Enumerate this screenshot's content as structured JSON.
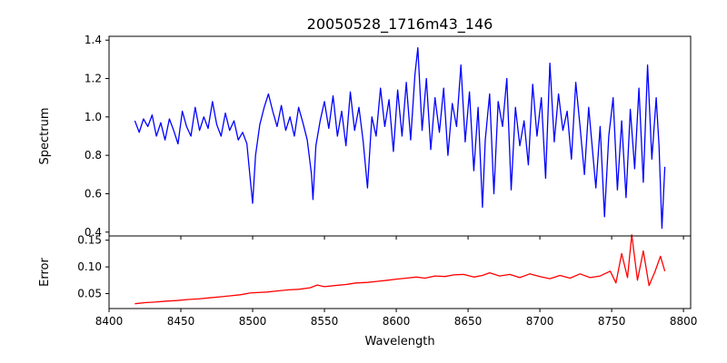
{
  "chart_data": [
    {
      "panel": "top",
      "type": "line",
      "title": "20050528_1716m43_146",
      "ylabel": "Spectrum",
      "xlabel": "",
      "xlim": [
        8400,
        8805
      ],
      "ylim": [
        0.38,
        1.42
      ],
      "yticks": [
        0.4,
        0.6,
        0.8,
        1.0,
        1.2,
        1.4
      ],
      "ytick_labels": [
        "0.4",
        "0.6",
        "0.8",
        "1.0",
        "1.2",
        "1.4"
      ],
      "series": [
        {
          "name": "Spectrum",
          "color": "#0000ff",
          "x": [
            8418,
            8421,
            8424,
            8427,
            8430,
            8433,
            8436,
            8439,
            8442,
            8445,
            8448,
            8451,
            8454,
            8457,
            8460,
            8463,
            8466,
            8469,
            8472,
            8475,
            8478,
            8481,
            8484,
            8487,
            8490,
            8493,
            8496,
            8498,
            8500,
            8502,
            8505,
            8508,
            8511,
            8514,
            8517,
            8520,
            8523,
            8526,
            8529,
            8532,
            8535,
            8538,
            8541,
            8542,
            8544,
            8547,
            8550,
            8553,
            8556,
            8559,
            8562,
            8565,
            8568,
            8571,
            8574,
            8577,
            8580,
            8583,
            8586,
            8589,
            8592,
            8595,
            8598,
            8601,
            8604,
            8607,
            8610,
            8613,
            8615,
            8618,
            8621,
            8624,
            8627,
            8630,
            8633,
            8636,
            8639,
            8642,
            8645,
            8648,
            8651,
            8654,
            8657,
            8660,
            8662,
            8665,
            8668,
            8671,
            8674,
            8677,
            8680,
            8683,
            8686,
            8689,
            8692,
            8695,
            8698,
            8701,
            8704,
            8707,
            8710,
            8713,
            8716,
            8719,
            8722,
            8725,
            8728,
            8731,
            8734,
            8737,
            8739,
            8742,
            8745,
            8748,
            8751,
            8754,
            8757,
            8760,
            8763,
            8766,
            8769,
            8772,
            8775,
            8778,
            8781,
            8783,
            8785,
            8787
          ],
          "y": [
            0.98,
            0.92,
            0.99,
            0.95,
            1.01,
            0.9,
            0.97,
            0.88,
            0.99,
            0.93,
            0.86,
            1.03,
            0.95,
            0.9,
            1.05,
            0.93,
            1.0,
            0.94,
            1.08,
            0.96,
            0.9,
            1.02,
            0.93,
            0.98,
            0.88,
            0.92,
            0.86,
            0.7,
            0.55,
            0.8,
            0.96,
            1.05,
            1.12,
            1.03,
            0.95,
            1.06,
            0.93,
            1.0,
            0.9,
            1.05,
            0.97,
            0.88,
            0.7,
            0.57,
            0.85,
            0.98,
            1.08,
            0.94,
            1.11,
            0.9,
            1.03,
            0.85,
            1.13,
            0.93,
            1.05,
            0.87,
            0.63,
            1.0,
            0.9,
            1.15,
            0.95,
            1.09,
            0.82,
            1.14,
            0.9,
            1.18,
            0.88,
            1.22,
            1.36,
            0.93,
            1.2,
            0.83,
            1.1,
            0.92,
            1.15,
            0.8,
            1.07,
            0.95,
            1.27,
            0.87,
            1.13,
            0.72,
            1.05,
            0.53,
            0.88,
            1.12,
            0.6,
            1.08,
            0.95,
            1.2,
            0.62,
            1.05,
            0.85,
            0.98,
            0.75,
            1.17,
            0.9,
            1.1,
            0.68,
            1.28,
            0.87,
            1.12,
            0.93,
            1.03,
            0.78,
            1.18,
            0.95,
            0.7,
            1.05,
            0.8,
            0.63,
            0.95,
            0.48,
            0.9,
            1.1,
            0.62,
            0.98,
            0.58,
            1.04,
            0.73,
            1.15,
            0.66,
            1.27,
            0.78,
            1.1,
            0.85,
            0.42,
            0.74
          ]
        }
      ]
    },
    {
      "panel": "bottom",
      "type": "line",
      "title": "",
      "ylabel": "Error",
      "xlabel": "Wavelength",
      "xlim": [
        8400,
        8805
      ],
      "ylim": [
        0.022,
        0.158
      ],
      "yticks": [
        0.05,
        0.1,
        0.15
      ],
      "ytick_labels": [
        "0.05",
        "0.10",
        "0.15"
      ],
      "xticks": [
        8400,
        8450,
        8500,
        8550,
        8600,
        8650,
        8700,
        8750,
        8800
      ],
      "xtick_labels": [
        "8400",
        "8450",
        "8500",
        "8550",
        "8600",
        "8650",
        "8700",
        "8750",
        "8800"
      ],
      "series": [
        {
          "name": "Error",
          "color": "#ff0000",
          "x": [
            8418,
            8425,
            8432,
            8440,
            8447,
            8455,
            8462,
            8470,
            8477,
            8485,
            8492,
            8498,
            8503,
            8510,
            8517,
            8525,
            8532,
            8540,
            8545,
            8550,
            8557,
            8565,
            8572,
            8580,
            8587,
            8594,
            8600,
            8607,
            8614,
            8620,
            8627,
            8634,
            8640,
            8647,
            8654,
            8660,
            8665,
            8672,
            8679,
            8686,
            8693,
            8700,
            8707,
            8714,
            8721,
            8728,
            8735,
            8742,
            8749,
            8753,
            8757,
            8761,
            8764,
            8768,
            8772,
            8776,
            8780,
            8784,
            8787
          ],
          "y": [
            0.031,
            0.033,
            0.034,
            0.036,
            0.037,
            0.039,
            0.04,
            0.042,
            0.044,
            0.046,
            0.048,
            0.051,
            0.052,
            0.053,
            0.055,
            0.057,
            0.058,
            0.061,
            0.066,
            0.063,
            0.065,
            0.067,
            0.07,
            0.071,
            0.073,
            0.075,
            0.077,
            0.079,
            0.081,
            0.079,
            0.083,
            0.082,
            0.085,
            0.086,
            0.081,
            0.084,
            0.089,
            0.083,
            0.086,
            0.08,
            0.087,
            0.082,
            0.078,
            0.084,
            0.079,
            0.087,
            0.08,
            0.083,
            0.092,
            0.07,
            0.125,
            0.08,
            0.16,
            0.075,
            0.13,
            0.065,
            0.09,
            0.12,
            0.092
          ]
        }
      ]
    }
  ]
}
